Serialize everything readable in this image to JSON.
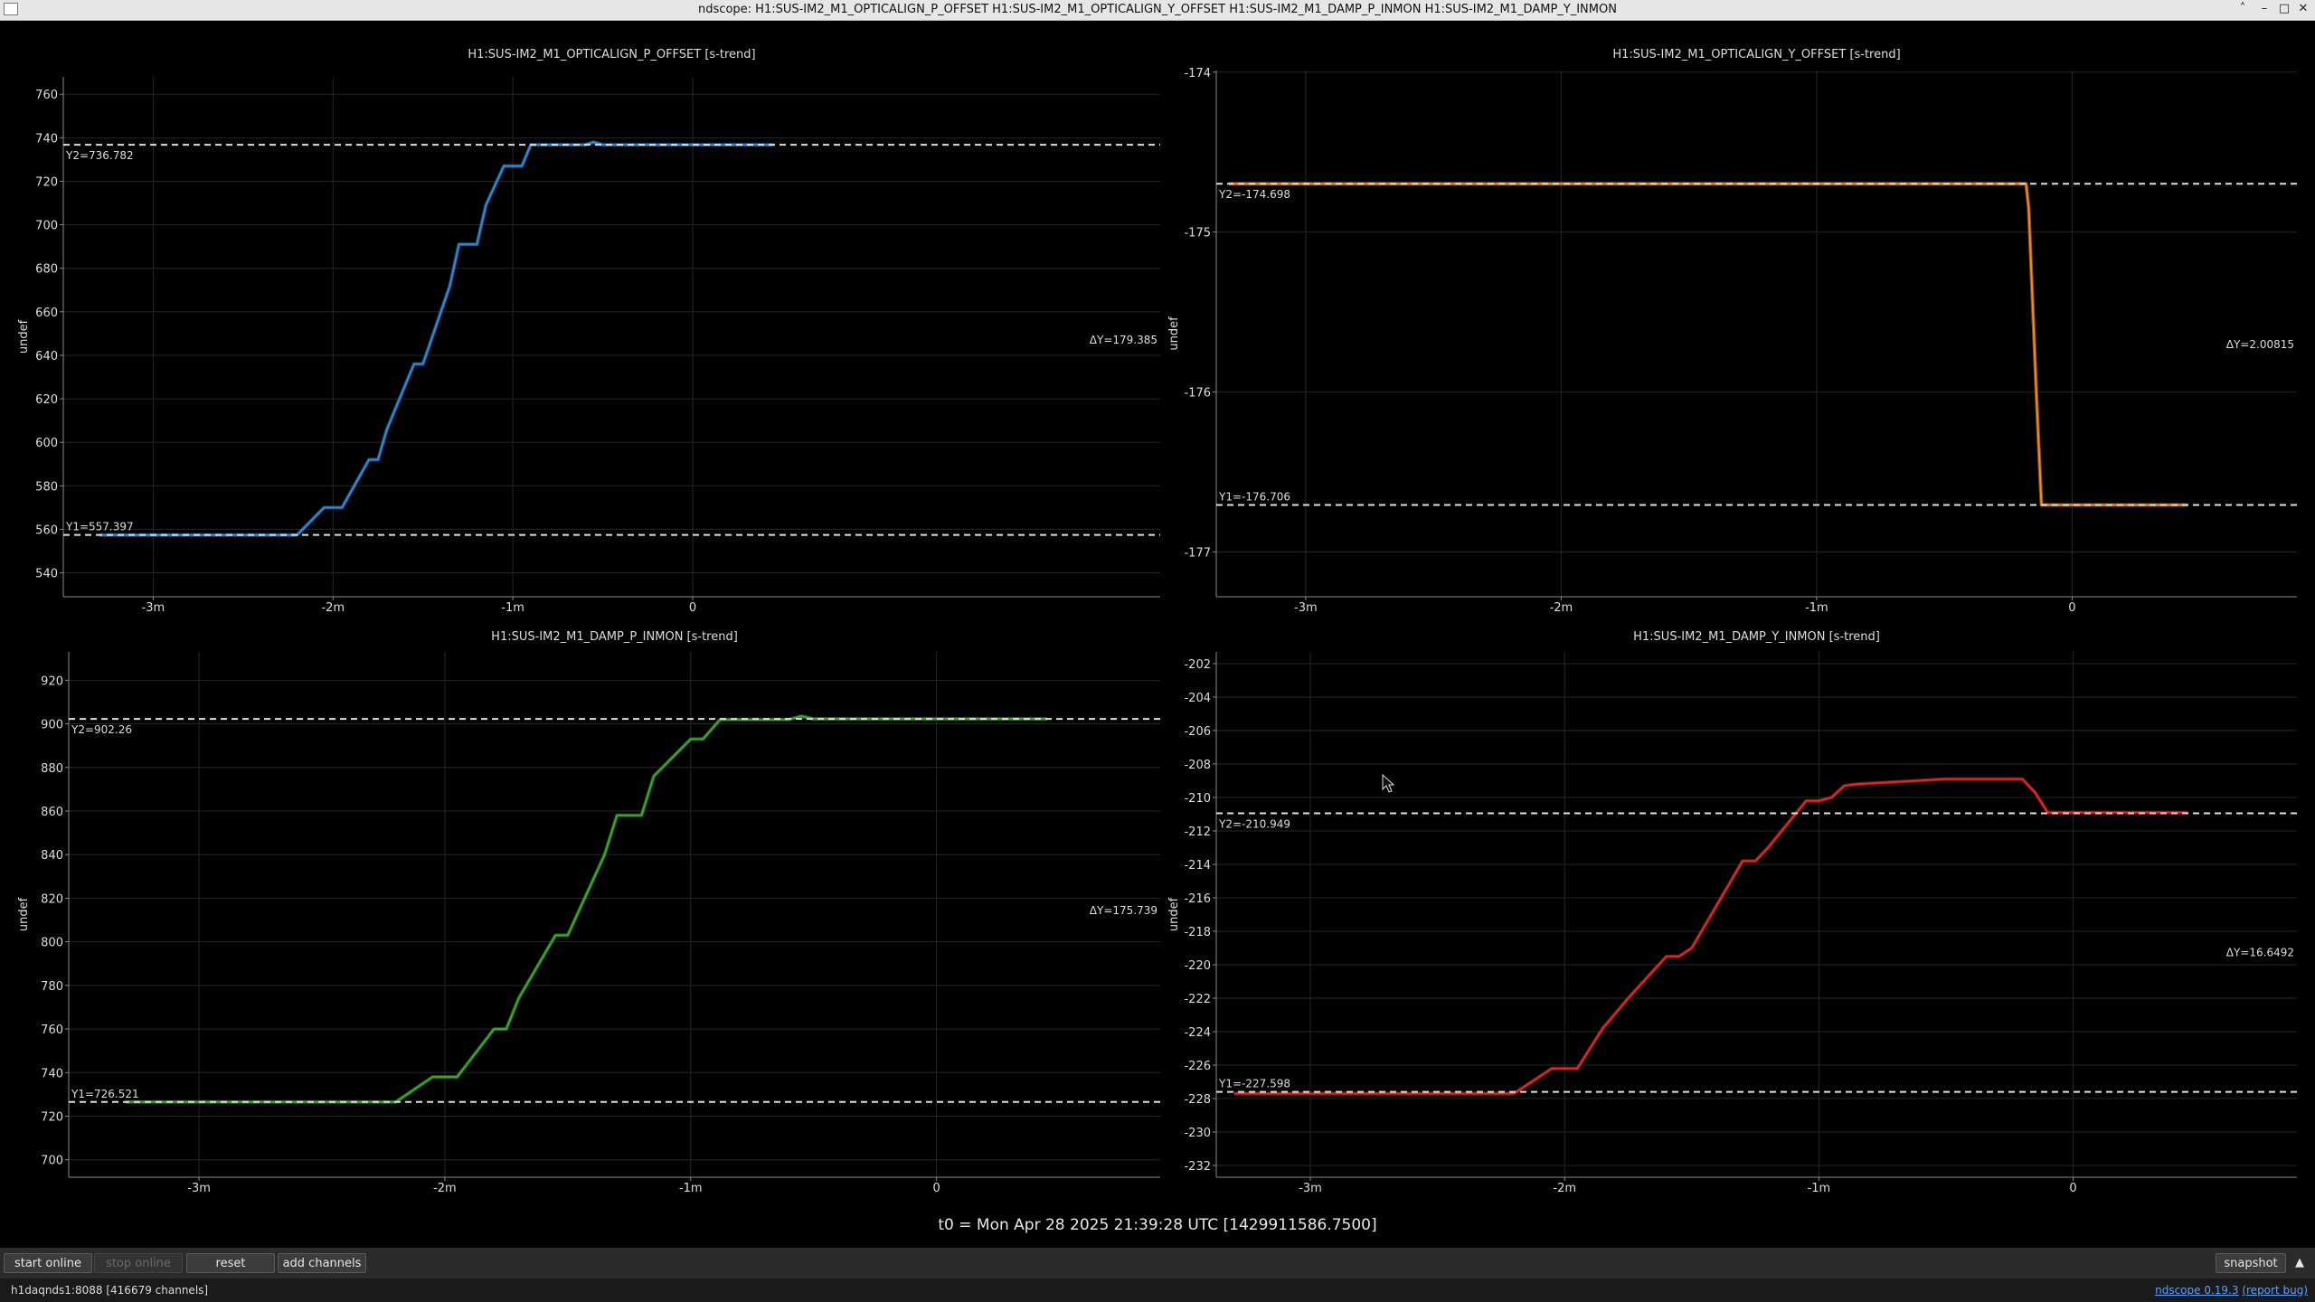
{
  "window": {
    "title": "ndscope: H1:SUS-IM2_M1_OPTICALIGN_P_OFFSET H1:SUS-IM2_M1_OPTICALIGN_Y_OFFSET H1:SUS-IM2_M1_DAMP_P_INMON H1:SUS-IM2_M1_DAMP_Y_INMON",
    "buttons": [
      "˄",
      "–",
      "□",
      "✕"
    ]
  },
  "t0_label": "t0 = Mon Apr 28 2025 21:39:28 UTC [1429911586.7500]",
  "buttons": {
    "start_online": "start online",
    "stop_online": "stop online",
    "reset": "reset",
    "add_channels": "add channels",
    "snapshot": "snapshot",
    "menu_arrow": "▲"
  },
  "status": {
    "server": "h1daqnds1:8088",
    "channels": "[416679 channels]",
    "version_link": "ndscope 0.19.3",
    "report_bug": "(report bug)"
  },
  "colors": {
    "background": "#000000",
    "text": "#dddddd",
    "grid": "#262626",
    "cursor_line": "#e0e0e0",
    "series": [
      "#2f8ad8",
      "#f08a24",
      "#3aaa2a",
      "#e02828"
    ]
  },
  "chart_data": [
    {
      "type": "line",
      "title": "H1:SUS-IM2_M1_OPTICALIGN_P_OFFSET [s-trend]",
      "ylabel": "undef",
      "xlabel": "",
      "xlim": [
        -3.5,
        2.6
      ],
      "ylim": [
        529,
        768
      ],
      "xticks": [
        {
          "v": -3,
          "label": "-3m"
        },
        {
          "v": -2,
          "label": "-2m"
        },
        {
          "v": -1,
          "label": "-1m"
        },
        {
          "v": 0,
          "label": "0"
        }
      ],
      "yticks": [
        540,
        560,
        580,
        600,
        620,
        640,
        660,
        680,
        700,
        720,
        740,
        760
      ],
      "ytick_labels": [
        "540",
        "560",
        "580",
        "600",
        "620",
        "640",
        "660",
        "680",
        "700",
        "720",
        "740",
        "760"
      ],
      "grid": true,
      "series": [
        {
          "color": "#2f8ad8",
          "x": [
            -3.3,
            -2.2,
            -2.05,
            -1.95,
            -1.8,
            -1.75,
            -1.7,
            -1.55,
            -1.5,
            -1.35,
            -1.3,
            -1.2,
            -1.15,
            -1.05,
            -0.95,
            -0.9,
            -0.6,
            -0.55,
            -0.5,
            0.45
          ],
          "y": [
            557.4,
            557.4,
            570,
            570,
            592,
            592,
            606,
            636,
            636,
            672,
            691,
            691,
            709,
            727,
            727,
            736.8,
            736.8,
            738,
            736.8,
            736.8
          ]
        }
      ],
      "cursors": {
        "y1": "Y1=557.397",
        "y1v": 557.397,
        "y2": "Y2=736.782",
        "y2v": 736.782,
        "dy": "ΔY=179.385"
      }
    },
    {
      "type": "line",
      "title": "H1:SUS-IM2_M1_OPTICALIGN_Y_OFFSET [s-trend]",
      "ylabel": "undef",
      "xlabel": "",
      "xlim": [
        -3.35,
        0.88
      ],
      "ylim": [
        -177.28,
        -173.99
      ],
      "xticks": [
        {
          "v": -3,
          "label": "-3m"
        },
        {
          "v": -2,
          "label": "-2m"
        },
        {
          "v": -1,
          "label": "-1m"
        },
        {
          "v": 0,
          "label": "0"
        }
      ],
      "yticks": [
        -174,
        -175,
        -176,
        -177
      ],
      "ytick_labels": [
        "-174",
        "-175",
        "-176",
        "-177"
      ],
      "grid": true,
      "series": [
        {
          "color": "#f08a24",
          "x": [
            -3.3,
            -0.18,
            -0.17,
            -0.14,
            -0.12,
            0.45
          ],
          "y": [
            -174.698,
            -174.698,
            -174.85,
            -176.0,
            -176.706,
            -176.706
          ]
        }
      ],
      "cursors": {
        "y1": "Y1=-176.706",
        "y1v": -176.706,
        "y2": "Y2=-174.698",
        "y2v": -174.698,
        "dy": "ΔY=2.00815"
      }
    },
    {
      "type": "line",
      "title": "H1:SUS-IM2_M1_DAMP_P_INMON [s-trend]",
      "ylabel": "undef",
      "xlabel": "",
      "xlim": [
        -3.53,
        0.91
      ],
      "ylim": [
        692,
        933
      ],
      "xticks": [
        {
          "v": -3,
          "label": "-3m"
        },
        {
          "v": -2,
          "label": "-2m"
        },
        {
          "v": -1,
          "label": "-1m"
        },
        {
          "v": 0,
          "label": "0"
        }
      ],
      "yticks": [
        700,
        720,
        740,
        760,
        780,
        800,
        820,
        840,
        860,
        880,
        900,
        920
      ],
      "ytick_labels": [
        "700",
        "720",
        "740",
        "760",
        "780",
        "800",
        "820",
        "840",
        "860",
        "880",
        "900",
        "920"
      ],
      "grid": true,
      "series": [
        {
          "color": "#3aaa2a",
          "x": [
            -3.3,
            -2.2,
            -2.05,
            -1.95,
            -1.8,
            -1.75,
            -1.7,
            -1.55,
            -1.5,
            -1.35,
            -1.3,
            -1.2,
            -1.15,
            -1.0,
            -0.95,
            -0.88,
            -0.6,
            -0.55,
            -0.5,
            0.45
          ],
          "y": [
            726.5,
            726.5,
            738,
            738,
            760,
            760,
            774,
            803,
            803,
            840,
            858,
            858,
            876,
            893,
            893,
            902,
            902,
            903.5,
            902.3,
            902.3
          ]
        }
      ],
      "cursors": {
        "y1": "Y1=726.521",
        "y1v": 726.521,
        "y2": "Y2=902.26",
        "y2v": 902.26,
        "dy": "ΔY=175.739"
      }
    },
    {
      "type": "line",
      "title": "H1:SUS-IM2_M1_DAMP_Y_INMON [s-trend]",
      "ylabel": "undef",
      "xlabel": "",
      "xlim": [
        -3.37,
        0.88
      ],
      "ylim": [
        -232.7,
        -201.3
      ],
      "xticks": [
        {
          "v": -3,
          "label": "-3m"
        },
        {
          "v": -2,
          "label": "-2m"
        },
        {
          "v": -1,
          "label": "-1m"
        },
        {
          "v": 0,
          "label": "0"
        }
      ],
      "yticks": [
        -202,
        -204,
        -206,
        -208,
        -210,
        -212,
        -214,
        -216,
        -218,
        -220,
        -222,
        -224,
        -226,
        -228,
        -230,
        -232
      ],
      "ytick_labels": [
        "-202",
        "-204",
        "-206",
        "-208",
        "-210",
        "-212",
        "-214",
        "-216",
        "-218",
        "-220",
        "-222",
        "-224",
        "-226",
        "-228",
        "-230",
        "-232"
      ],
      "grid": true,
      "series": [
        {
          "color": "#e02828",
          "x": [
            -3.3,
            -2.2,
            -2.05,
            -1.95,
            -1.85,
            -1.75,
            -1.6,
            -1.55,
            -1.5,
            -1.3,
            -1.25,
            -1.2,
            -1.05,
            -1.0,
            -0.95,
            -0.9,
            -0.85,
            -0.5,
            -0.2,
            -0.15,
            -0.1,
            0.45
          ],
          "y": [
            -227.7,
            -227.7,
            -226.2,
            -226.2,
            -223.8,
            -222.0,
            -219.5,
            -219.5,
            -219.0,
            -213.8,
            -213.8,
            -213.0,
            -210.2,
            -210.2,
            -210.0,
            -209.3,
            -209.2,
            -208.9,
            -208.9,
            -209.7,
            -210.9,
            -210.9
          ]
        }
      ],
      "cursors": {
        "y1": "Y1=-227.598",
        "y1v": -227.598,
        "y2": "Y2=-210.949",
        "y2v": -210.949,
        "dy": "ΔY=16.6492"
      }
    }
  ]
}
